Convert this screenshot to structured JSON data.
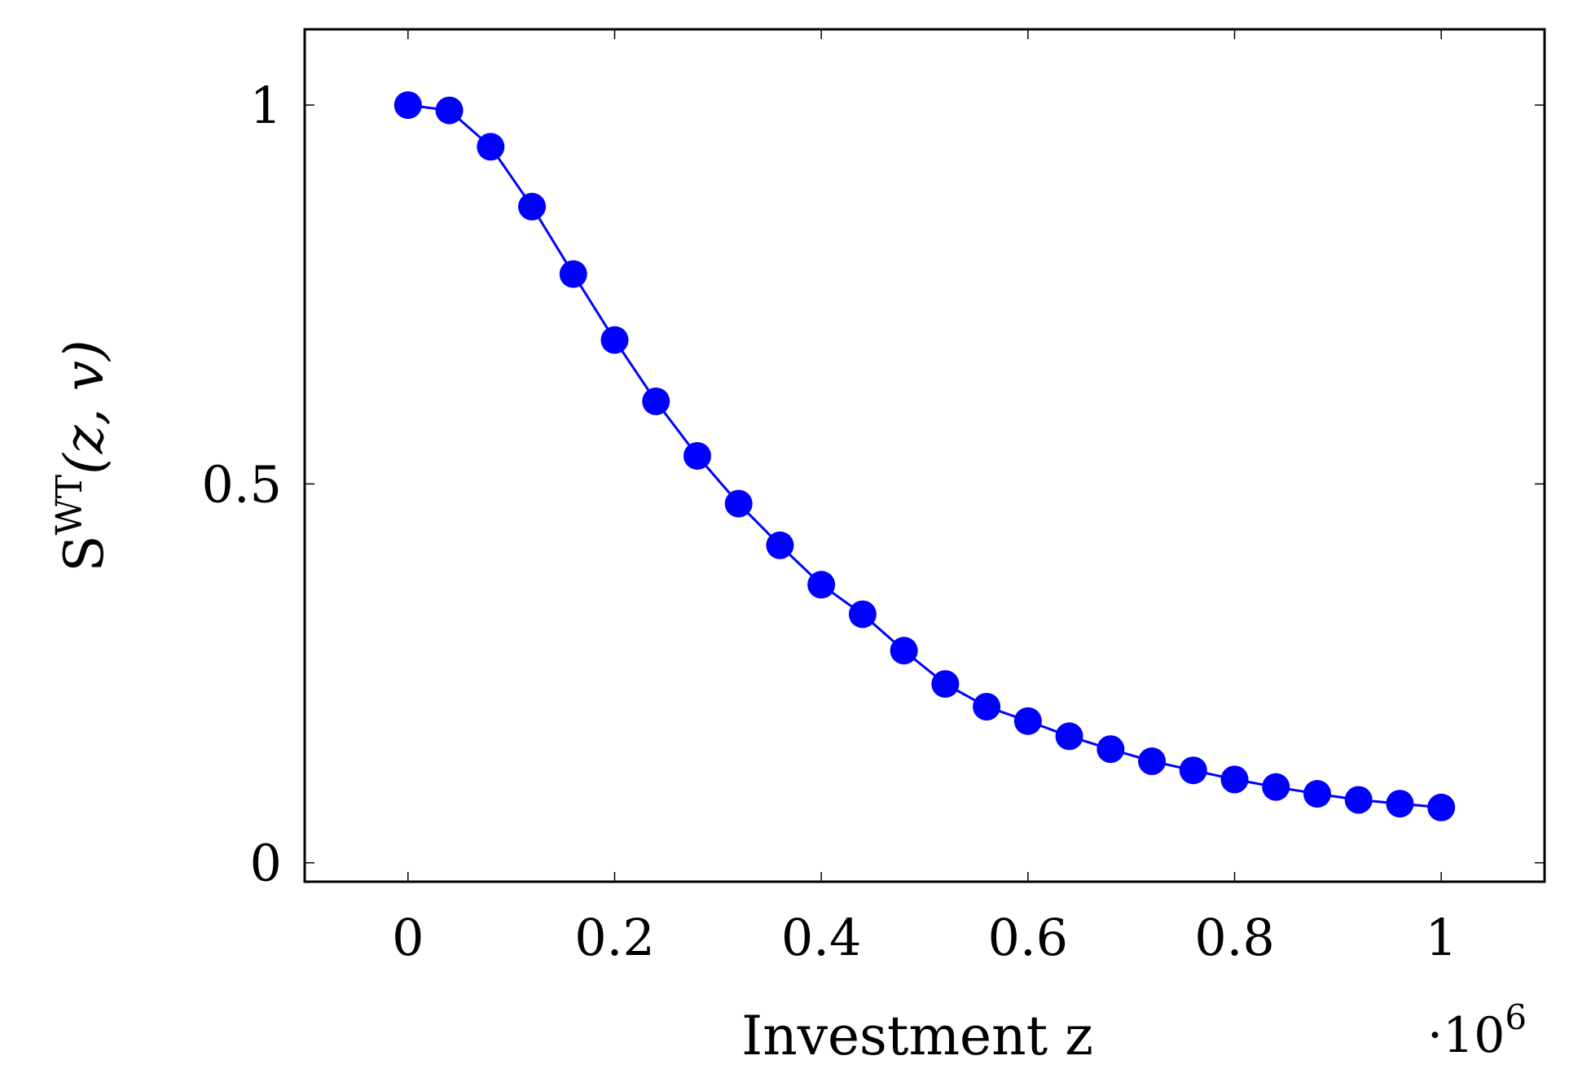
{
  "chart_data": {
    "type": "line",
    "title": "",
    "xlabel": "Investment z",
    "ylabel": "S^WT(z, v)",
    "ylabel_parts": {
      "base": "S",
      "sup": "WT",
      "args": "(z, v)"
    },
    "x_multiplier": {
      "base": "·10",
      "exp": "6"
    },
    "xlim": [
      -0.1,
      1.1
    ],
    "ylim": [
      -0.025,
      1.1
    ],
    "xticks": [
      0,
      0.2,
      0.4,
      0.6,
      0.8,
      1
    ],
    "xtick_labels": [
      "0",
      "0.2",
      "0.4",
      "0.6",
      "0.8",
      "1"
    ],
    "yticks": [
      0,
      0.5,
      1
    ],
    "ytick_labels": [
      "0",
      "0.5",
      "1"
    ],
    "grid": false,
    "legend": "none",
    "series": [
      {
        "color": "#0000ff",
        "marker": "circle",
        "x": [
          0,
          0.04,
          0.08,
          0.12,
          0.16,
          0.2,
          0.24,
          0.28,
          0.32,
          0.36,
          0.4,
          0.44,
          0.48,
          0.52,
          0.56,
          0.6,
          0.64,
          0.68,
          0.72,
          0.76,
          0.8,
          0.84,
          0.88,
          0.92,
          0.96,
          1.0
        ],
        "y": [
          1.0,
          0.993,
          0.945,
          0.866,
          0.777,
          0.69,
          0.609,
          0.537,
          0.474,
          0.419,
          0.367,
          0.328,
          0.28,
          0.236,
          0.206,
          0.187,
          0.167,
          0.15,
          0.134,
          0.122,
          0.11,
          0.1,
          0.091,
          0.083,
          0.078,
          0.073
        ]
      }
    ]
  }
}
